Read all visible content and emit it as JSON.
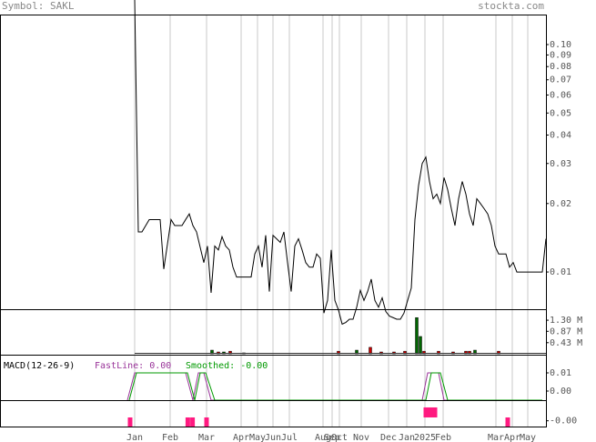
{
  "chart_data": [
    {
      "type": "line",
      "title": "Symbol: SAKL",
      "source": "stockta.com",
      "log_scale": true,
      "grid": true,
      "color": "#000000",
      "x": [
        37,
        38,
        39,
        41,
        44,
        45,
        47,
        48,
        50,
        51,
        52,
        53,
        54,
        56,
        57,
        58,
        59,
        60,
        61,
        62,
        63,
        64,
        65,
        67,
        68,
        69,
        70,
        71,
        72,
        73,
        74,
        75,
        77,
        78,
        79,
        80,
        81,
        82,
        83,
        84,
        85,
        86,
        87,
        88,
        89,
        90,
        91,
        92,
        93,
        94,
        95,
        96,
        97,
        98,
        99,
        100,
        101,
        102,
        103,
        104,
        105,
        106,
        107,
        108,
        109,
        110,
        111,
        112,
        113,
        114,
        115,
        116,
        117,
        118,
        119,
        120,
        121,
        122,
        123,
        124,
        125,
        126,
        127,
        128,
        129,
        130,
        131,
        132,
        133,
        134,
        135,
        136,
        137,
        138,
        139,
        140,
        141,
        142,
        145,
        149,
        150
      ],
      "values": [
        0.16,
        0.015,
        0.015,
        0.017,
        0.017,
        0.0103,
        0.017,
        0.016,
        0.016,
        0.017,
        0.018,
        0.016,
        0.015,
        0.011,
        0.013,
        0.0081,
        0.013,
        0.0125,
        0.0143,
        0.013,
        0.0125,
        0.0105,
        0.0095,
        0.0095,
        0.0095,
        0.0095,
        0.012,
        0.013,
        0.0105,
        0.0145,
        0.0082,
        0.0145,
        0.0135,
        0.015,
        0.011,
        0.0082,
        0.013,
        0.014,
        0.0125,
        0.011,
        0.0105,
        0.0105,
        0.012,
        0.0115,
        0.0066,
        0.0075,
        0.0125,
        0.0075,
        0.0068,
        0.0059,
        0.006,
        0.0062,
        0.0062,
        0.007,
        0.0083,
        0.0075,
        0.0082,
        0.0093,
        0.0075,
        0.007,
        0.0077,
        0.0067,
        0.0064,
        0.0063,
        0.0062,
        0.0062,
        0.0066,
        0.0075,
        0.0085,
        0.017,
        0.024,
        0.03,
        0.032,
        0.025,
        0.021,
        0.022,
        0.02,
        0.026,
        0.023,
        0.019,
        0.016,
        0.021,
        0.025,
        0.022,
        0.018,
        0.016,
        0.021,
        0.02,
        0.019,
        0.018,
        0.016,
        0.013,
        0.012,
        0.012,
        0.012,
        0.0105,
        0.011,
        0.01,
        0.01,
        0.01,
        0.014
      ],
      "xlim": [
        0,
        150
      ],
      "ylim": [
        0.00686,
        0.1355
      ],
      "yticks": [
        {
          "value": 0.1,
          "label": "0.10"
        },
        0.09,
        0.08,
        0.07,
        0.06,
        0.05,
        0.04,
        0.03,
        0.02,
        0.01
      ],
      "xticks": [
        {
          "value": 37,
          "label": "Jan"
        },
        {
          "value": 46.75,
          "label": "Feb"
        },
        {
          "value": 56.75,
          "label": "Mar"
        },
        {
          "value": 66.25,
          "label": "Apr"
        },
        {
          "value": 70.75,
          "label": "May"
        },
        {
          "value": 75,
          "label": "Jun"
        },
        {
          "value": 79.5,
          "label": "Jul"
        },
        {
          "value": 88.75,
          "label": "Aug"
        },
        {
          "value": 91.25,
          "label": "Sep"
        },
        {
          "value": 93.25,
          "label": "Oct"
        },
        {
          "value": 99.25,
          "label": "Nov"
        },
        {
          "value": 106.75,
          "label": "Dec"
        },
        {
          "value": 111.75,
          "label": "Jan"
        },
        {
          "value": 116.75,
          "label": "2025"
        },
        {
          "value": 121.75,
          "label": "Feb"
        },
        {
          "value": 136.25,
          "label": "Mar"
        },
        {
          "value": 140.75,
          "label": "Apr"
        },
        {
          "value": 145,
          "label": "May"
        }
      ]
    },
    {
      "type": "bar",
      "xlim": [
        0,
        150
      ],
      "ylim": [
        0,
        1690000
      ],
      "x": [
        58.25,
        60,
        61.5,
        63.25,
        67,
        93,
        98,
        101.75,
        104.75,
        108.25,
        111.25,
        114.5,
        115.5,
        116.5,
        120.5,
        124.5,
        128,
        129,
        130.5,
        137
      ],
      "values": [
        140000,
        70000,
        70000,
        100000,
        35000,
        100000,
        140000,
        250000,
        70000,
        70000,
        100000,
        1400000,
        670000,
        100000,
        100000,
        70000,
        100000,
        100000,
        140000,
        100000
      ],
      "colors": [
        "#006600",
        "#cc0000",
        "#006600",
        "#cc0000",
        "#cc0000",
        "#cc0000",
        "#006600",
        "#cc0000",
        "#cc0000",
        "#cc0000",
        "#cc0000",
        "#006600",
        "#006600",
        "#cc0000",
        "#cc0000",
        "#cc0000",
        "#cc0000",
        "#cc0000",
        "#006600",
        "#cc0000"
      ],
      "yticks": [
        {
          "value": 1300000,
          "label": "1.30 M"
        },
        {
          "value": 870000,
          "label": "0.87 M"
        },
        {
          "value": 430000,
          "label": "0.43 M"
        }
      ]
    },
    {
      "type": "line",
      "title": "MACD(12-26-9)",
      "xlim": [
        0,
        150
      ],
      "ylim": [
        -0.005,
        0.0195
      ],
      "yticks": [
        0.01,
        {
          "value": 0,
          "label": "0.00"
        }
      ],
      "series": [
        {
          "name": "FastLine: 0.00",
          "color": "#993399",
          "x": [
            35,
            37,
            51,
            53,
            54.5,
            56,
            58,
            116,
            117.5,
            120.5,
            122,
            149
          ],
          "values": [
            -0.005,
            0.01,
            0.01,
            -0.005,
            0.01,
            0.01,
            -0.005,
            -0.005,
            0.01,
            0.01,
            -0.005,
            -0.005
          ]
        },
        {
          "name": "Smoothed: -0.00",
          "color": "#009900",
          "x": [
            35.5,
            37.5,
            51.5,
            53.5,
            55,
            56.5,
            59,
            117,
            118.5,
            121,
            123,
            149
          ],
          "values": [
            -0.005,
            0.01,
            0.01,
            -0.005,
            0.01,
            0.01,
            -0.005,
            -0.005,
            0.01,
            0.01,
            -0.005,
            -0.005
          ]
        }
      ]
    },
    {
      "type": "bar",
      "color": "#ff1a80",
      "xlim": [
        0,
        150
      ],
      "ylim": [
        -0.003,
        0.0049
      ],
      "x": [
        35.75,
        51.6,
        52.9,
        56.75,
        117,
        118.25,
        119.5,
        139.5
      ],
      "values": [
        -0.003,
        -0.003,
        -0.003,
        -0.003,
        0.003,
        0.003,
        0.003,
        -0.003
      ],
      "yticks": [
        {
          "value": -0.001,
          "label": "-0.00"
        }
      ]
    }
  ]
}
